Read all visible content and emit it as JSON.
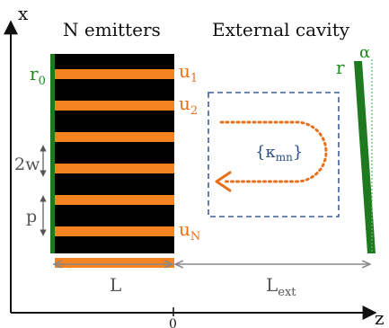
{
  "colors": {
    "emitter_block": "#000000",
    "stripe": "#f5831f",
    "mirror": "#1f7a1f",
    "mirror_light": "#5dbb5d",
    "label_orange": "#e8701a",
    "cavity_box": "#3c5f95",
    "arrow_dots": "#e8701a",
    "axis": "#111111",
    "dimension": "#888888"
  },
  "headings": {
    "emitters": "N emitters",
    "cavity": "External cavity"
  },
  "axes": {
    "x_label": "x",
    "z_label": "z",
    "origin_label": "0"
  },
  "emitter_stack": {
    "stripe_count": 7
  },
  "labels": {
    "r0": {
      "base": "r",
      "sub": "0"
    },
    "u1": {
      "base": "u",
      "sub": "1"
    },
    "u2": {
      "base": "u",
      "sub": "2"
    },
    "uN": {
      "base": "u",
      "sub": "N"
    },
    "two_w": "2w",
    "p": "p",
    "r_out": "r",
    "alpha": "α",
    "kappa": {
      "open": "{κ",
      "sub": "mn",
      "close": "}"
    },
    "L": "L",
    "Lext": {
      "base": "L",
      "sub": "ext"
    }
  }
}
